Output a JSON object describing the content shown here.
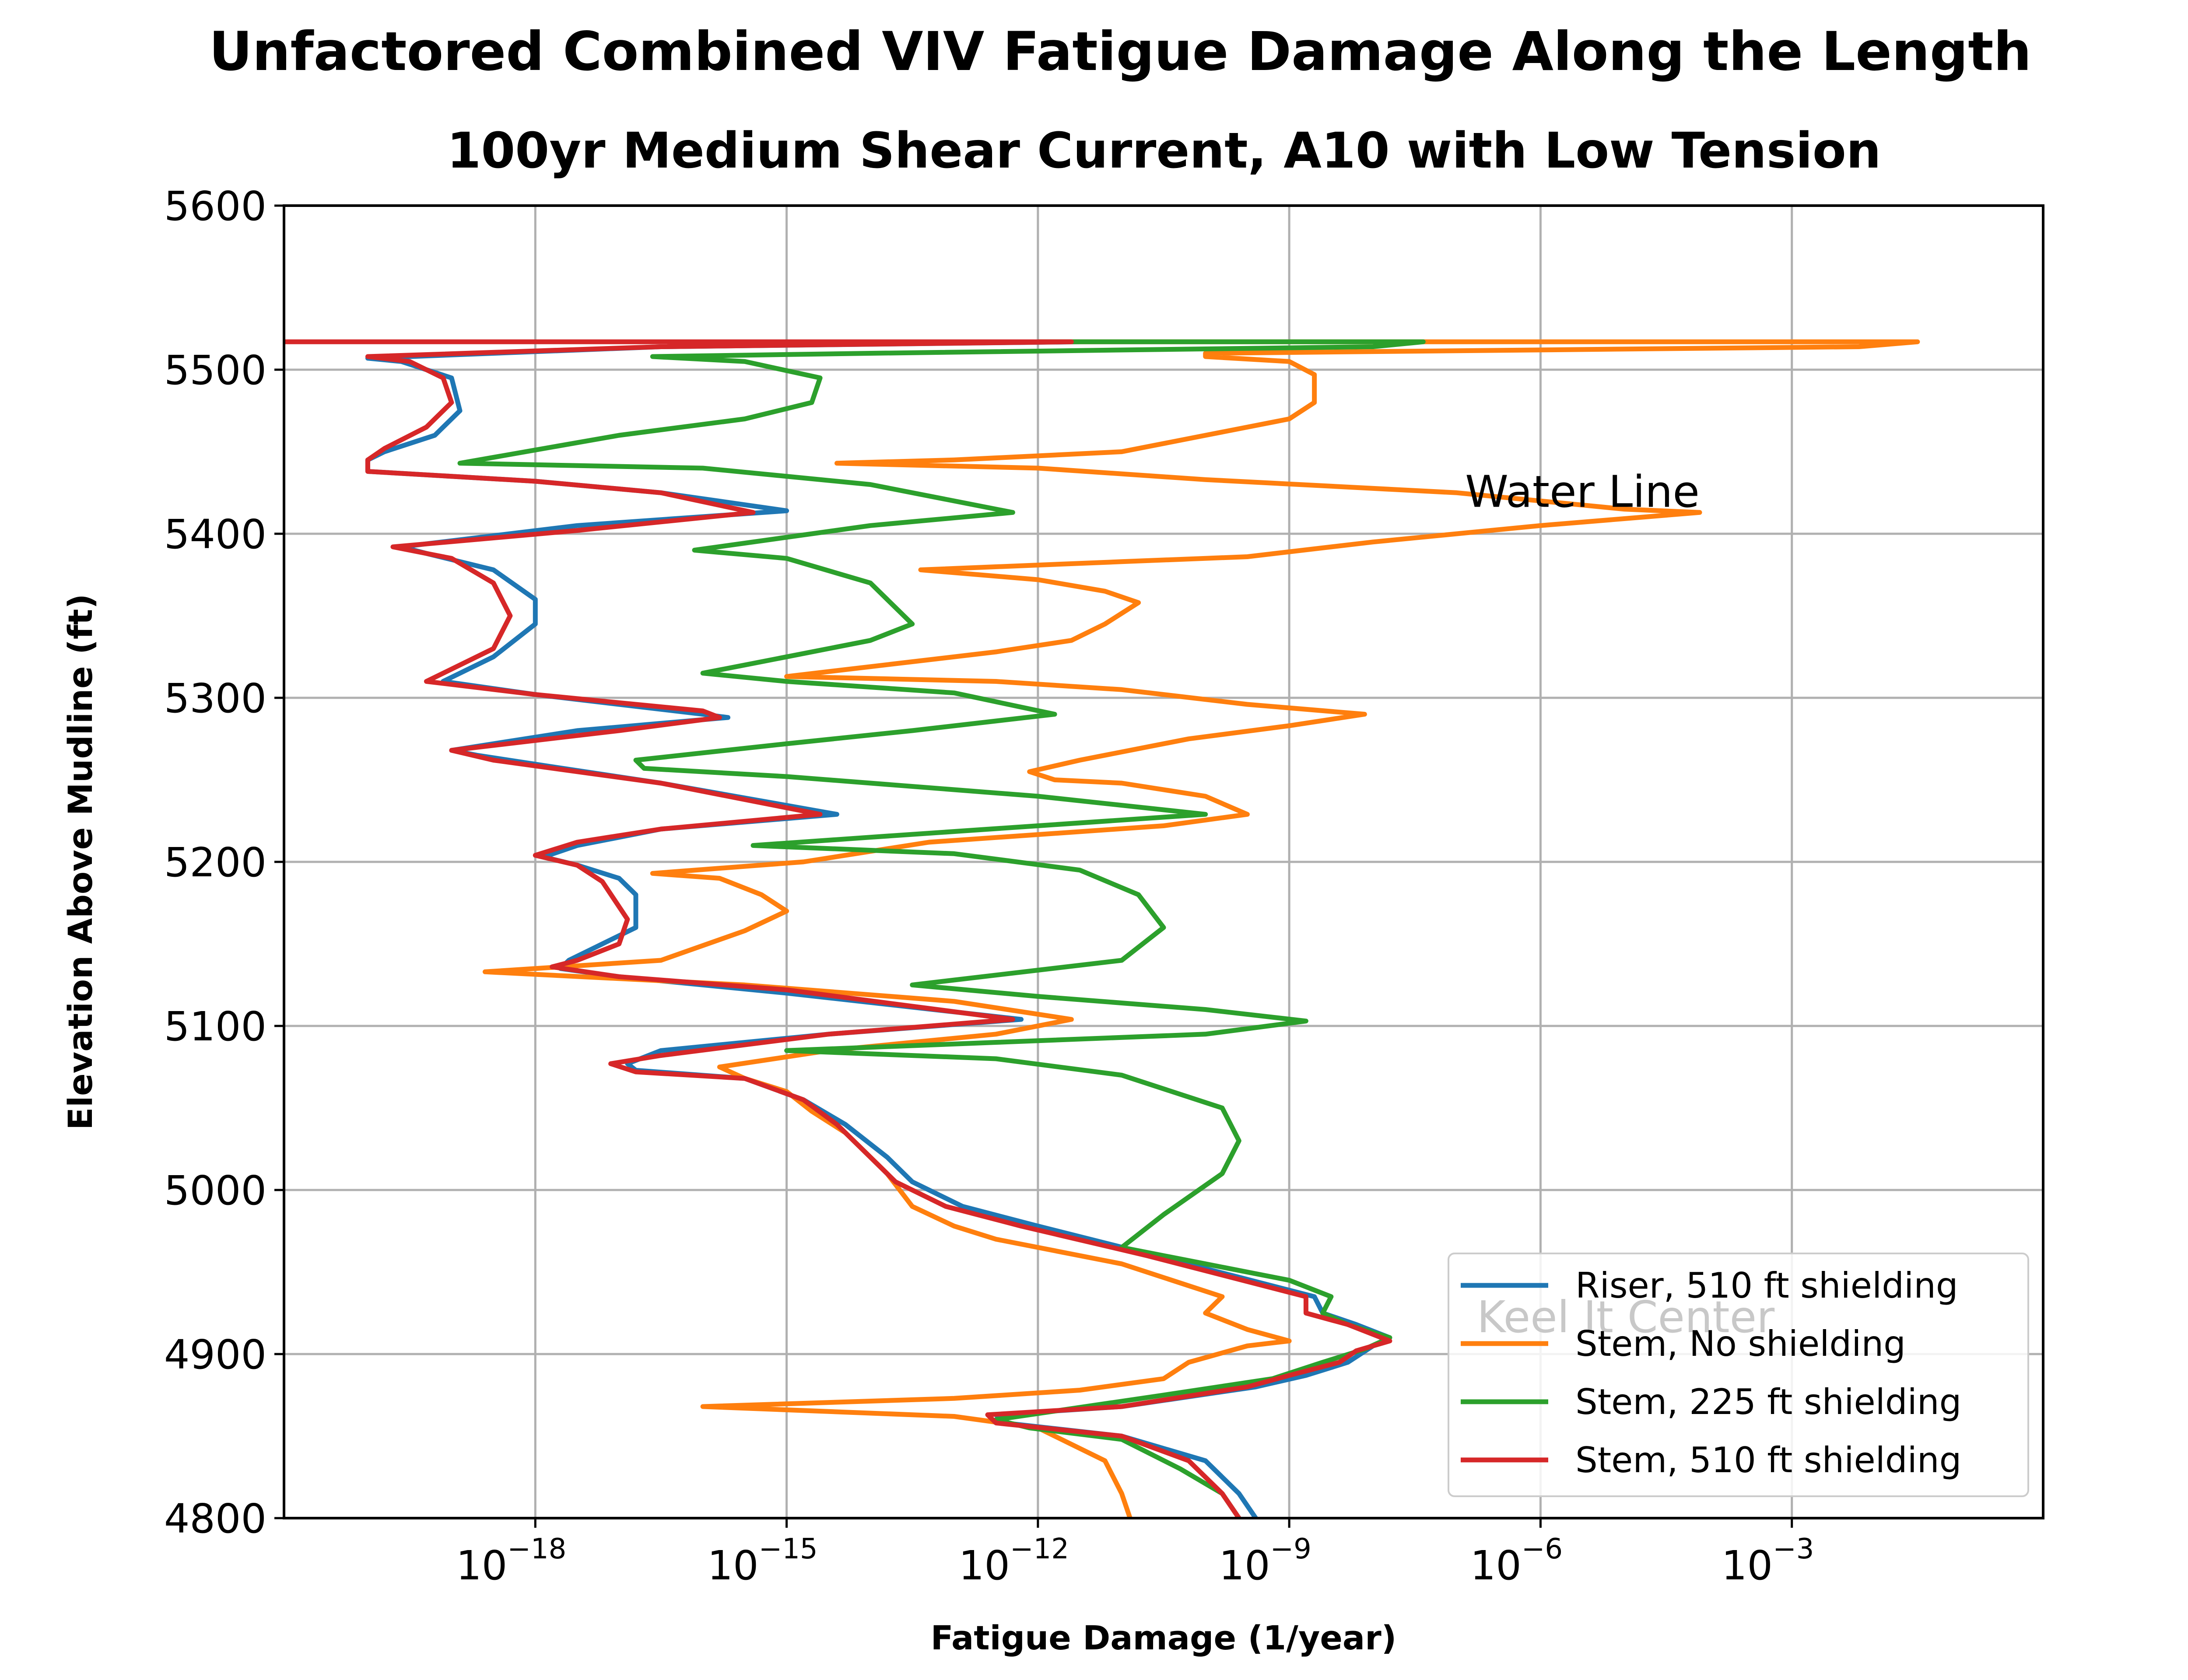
{
  "chart_data": {
    "type": "line",
    "title": "Unfactored Combined VIV Fatigue Damage Along the Length",
    "subtitle": "100yr Medium Shear Current, A10 with Low Tension",
    "xlabel": "Fatigue Damage (1/year)",
    "ylabel": "Elevation Above Mudline (ft)",
    "xscale": "log",
    "xlim_exp": [
      -21,
      0
    ],
    "ylim": [
      4800,
      5600
    ],
    "x_tick_exps": [
      -18,
      -15,
      -12,
      -9,
      -6,
      -3
    ],
    "x_tick_labels": [
      "10",
      "10",
      "10",
      "10",
      "10",
      "10"
    ],
    "x_tick_label_exps": [
      "−18",
      "−15",
      "−12",
      "−9",
      "−6",
      "−3"
    ],
    "y_ticks": [
      4800,
      4900,
      5000,
      5100,
      5200,
      5300,
      5400,
      5500,
      5600
    ],
    "y_tick_labels": [
      "4800",
      "4900",
      "5000",
      "5100",
      "5200",
      "5300",
      "5400",
      "5500",
      "5600"
    ],
    "grid": true,
    "legend_position": "lower-right",
    "annotations": [
      {
        "text": "Water Line",
        "x_exp": -6.9,
        "y": 5425
      }
    ],
    "watermark": "Keel It  Center",
    "series": [
      {
        "name": "Riser, 510 ft shielding",
        "color": "#1f77b4",
        "points_exp_y": [
          [
            -11.5,
            5517
          ],
          [
            -16.5,
            5514
          ],
          [
            -20.0,
            5507
          ],
          [
            -19.6,
            5505
          ],
          [
            -19.0,
            5495
          ],
          [
            -18.9,
            5475
          ],
          [
            -19.2,
            5460
          ],
          [
            -19.8,
            5450
          ],
          [
            -20.0,
            5445
          ],
          [
            -20.0,
            5438
          ],
          [
            -18.0,
            5432
          ],
          [
            -16.5,
            5425
          ],
          [
            -15.0,
            5414
          ],
          [
            -17.5,
            5405
          ],
          [
            -19.6,
            5392
          ],
          [
            -19.3,
            5388
          ],
          [
            -18.5,
            5378
          ],
          [
            -18.0,
            5360
          ],
          [
            -18.0,
            5345
          ],
          [
            -18.5,
            5325
          ],
          [
            -19.1,
            5310
          ],
          [
            -18.0,
            5302
          ],
          [
            -16.0,
            5290
          ],
          [
            -15.7,
            5288
          ],
          [
            -17.5,
            5280
          ],
          [
            -19.0,
            5268
          ],
          [
            -18.7,
            5265
          ],
          [
            -17.8,
            5258
          ],
          [
            -16.5,
            5248
          ],
          [
            -14.4,
            5229
          ],
          [
            -16.5,
            5220
          ],
          [
            -17.5,
            5210
          ],
          [
            -17.9,
            5203
          ],
          [
            -17.5,
            5198
          ],
          [
            -17.0,
            5190
          ],
          [
            -16.8,
            5180
          ],
          [
            -16.8,
            5160
          ],
          [
            -17.2,
            5150
          ],
          [
            -17.6,
            5140
          ],
          [
            -17.7,
            5135
          ],
          [
            -17.0,
            5130
          ],
          [
            -15.0,
            5120
          ],
          [
            -12.2,
            5104
          ],
          [
            -14.5,
            5095
          ],
          [
            -16.5,
            5085
          ],
          [
            -16.9,
            5077
          ],
          [
            -16.8,
            5073
          ],
          [
            -15.5,
            5068
          ],
          [
            -14.8,
            5055
          ],
          [
            -14.3,
            5040
          ],
          [
            -13.8,
            5020
          ],
          [
            -13.5,
            5005
          ],
          [
            -12.9,
            4990
          ],
          [
            -12.0,
            4978
          ],
          [
            -10.6,
            4960
          ],
          [
            -8.7,
            4935
          ],
          [
            -8.6,
            4925
          ],
          [
            -8.2,
            4918
          ],
          [
            -7.8,
            4910
          ],
          [
            -8.0,
            4905
          ],
          [
            -8.3,
            4895
          ],
          [
            -8.8,
            4887
          ],
          [
            -9.4,
            4880
          ],
          [
            -11.0,
            4868
          ],
          [
            -12.5,
            4863
          ],
          [
            -12.4,
            4858
          ],
          [
            -11.0,
            4850
          ],
          [
            -10.0,
            4835
          ],
          [
            -9.6,
            4815
          ],
          [
            -9.4,
            4800
          ]
        ]
      },
      {
        "name": "Stem, No shielding",
        "color": "#ff7f0e",
        "points_exp_y": [
          [
            -12.0,
            5517
          ],
          [
            -1.5,
            5517
          ],
          [
            -2.2,
            5514
          ],
          [
            -10.0,
            5510
          ],
          [
            -10.0,
            5508
          ],
          [
            -9.0,
            5505
          ],
          [
            -8.7,
            5497
          ],
          [
            -8.7,
            5480
          ],
          [
            -9.0,
            5470
          ],
          [
            -10.0,
            5460
          ],
          [
            -11.0,
            5450
          ],
          [
            -13.0,
            5445
          ],
          [
            -14.4,
            5443
          ],
          [
            -12.0,
            5440
          ],
          [
            -10.0,
            5433
          ],
          [
            -7.0,
            5425
          ],
          [
            -5.0,
            5415
          ],
          [
            -4.1,
            5413
          ],
          [
            -6.0,
            5405
          ],
          [
            -8.0,
            5395
          ],
          [
            -9.5,
            5386
          ],
          [
            -11.0,
            5383
          ],
          [
            -13.4,
            5378
          ],
          [
            -12.0,
            5372
          ],
          [
            -11.2,
            5365
          ],
          [
            -10.8,
            5358
          ],
          [
            -11.2,
            5345
          ],
          [
            -11.6,
            5335
          ],
          [
            -12.5,
            5328
          ],
          [
            -15.0,
            5313
          ],
          [
            -12.5,
            5310
          ],
          [
            -11.0,
            5305
          ],
          [
            -9.5,
            5296
          ],
          [
            -8.1,
            5290
          ],
          [
            -9.0,
            5283
          ],
          [
            -10.2,
            5275
          ],
          [
            -11.5,
            5262
          ],
          [
            -12.1,
            5255
          ],
          [
            -11.8,
            5250
          ],
          [
            -11.0,
            5248
          ],
          [
            -10.0,
            5240
          ],
          [
            -9.5,
            5229
          ],
          [
            -10.5,
            5222
          ],
          [
            -13.3,
            5212
          ],
          [
            -14.8,
            5200
          ],
          [
            -16.6,
            5193
          ],
          [
            -15.8,
            5190
          ],
          [
            -15.3,
            5180
          ],
          [
            -15.0,
            5170
          ],
          [
            -15.5,
            5158
          ],
          [
            -16.5,
            5140
          ],
          [
            -18.6,
            5133
          ],
          [
            -15.5,
            5125
          ],
          [
            -13.0,
            5115
          ],
          [
            -11.6,
            5104
          ],
          [
            -12.5,
            5095
          ],
          [
            -14.5,
            5085
          ],
          [
            -15.8,
            5075
          ],
          [
            -15.5,
            5068
          ],
          [
            -15.0,
            5060
          ],
          [
            -14.7,
            5048
          ],
          [
            -14.3,
            5035
          ],
          [
            -13.8,
            5010
          ],
          [
            -13.5,
            4990
          ],
          [
            -13.0,
            4978
          ],
          [
            -12.5,
            4970
          ],
          [
            -11.0,
            4955
          ],
          [
            -9.8,
            4935
          ],
          [
            -10.0,
            4925
          ],
          [
            -9.5,
            4915
          ],
          [
            -9.0,
            4908
          ],
          [
            -9.5,
            4905
          ],
          [
            -10.2,
            4895
          ],
          [
            -10.5,
            4885
          ],
          [
            -11.5,
            4878
          ],
          [
            -13.0,
            4873
          ],
          [
            -16.0,
            4868
          ],
          [
            -13.0,
            4862
          ],
          [
            -12.0,
            4855
          ],
          [
            -11.2,
            4835
          ],
          [
            -11.0,
            4815
          ],
          [
            -10.9,
            4800
          ]
        ]
      },
      {
        "name": "Stem, 225 ft shielding",
        "color": "#2ca02c",
        "points_exp_y": [
          [
            -12.0,
            5517
          ],
          [
            -7.4,
            5517
          ],
          [
            -8.0,
            5514
          ],
          [
            -14.0,
            5510
          ],
          [
            -16.6,
            5508
          ],
          [
            -15.5,
            5505
          ],
          [
            -14.6,
            5495
          ],
          [
            -14.7,
            5480
          ],
          [
            -15.5,
            5470
          ],
          [
            -17.0,
            5460
          ],
          [
            -18.9,
            5443
          ],
          [
            -16.0,
            5440
          ],
          [
            -14.0,
            5430
          ],
          [
            -12.3,
            5413
          ],
          [
            -14.0,
            5405
          ],
          [
            -16.1,
            5390
          ],
          [
            -15.0,
            5385
          ],
          [
            -14.0,
            5370
          ],
          [
            -13.5,
            5345
          ],
          [
            -14.0,
            5335
          ],
          [
            -15.0,
            5325
          ],
          [
            -16.0,
            5315
          ],
          [
            -15.0,
            5310
          ],
          [
            -13.0,
            5303
          ],
          [
            -11.8,
            5290
          ],
          [
            -13.5,
            5280
          ],
          [
            -15.0,
            5272
          ],
          [
            -16.8,
            5262
          ],
          [
            -16.7,
            5257
          ],
          [
            -15.0,
            5252
          ],
          [
            -12.0,
            5240
          ],
          [
            -10.0,
            5229
          ],
          [
            -12.0,
            5222
          ],
          [
            -14.0,
            5215
          ],
          [
            -15.4,
            5210
          ],
          [
            -13.0,
            5205
          ],
          [
            -11.5,
            5195
          ],
          [
            -10.8,
            5180
          ],
          [
            -10.5,
            5160
          ],
          [
            -11.0,
            5140
          ],
          [
            -13.5,
            5125
          ],
          [
            -12.0,
            5118
          ],
          [
            -10.0,
            5110
          ],
          [
            -8.8,
            5103
          ],
          [
            -10.0,
            5095
          ],
          [
            -12.5,
            5090
          ],
          [
            -15.0,
            5085
          ],
          [
            -12.5,
            5080
          ],
          [
            -11.0,
            5070
          ],
          [
            -9.8,
            5050
          ],
          [
            -9.6,
            5030
          ],
          [
            -9.8,
            5010
          ],
          [
            -10.5,
            4985
          ],
          [
            -11.0,
            4965
          ],
          [
            -10.0,
            4955
          ],
          [
            -9.0,
            4945
          ],
          [
            -8.5,
            4935
          ],
          [
            -8.6,
            4925
          ],
          [
            -8.3,
            4918
          ],
          [
            -7.8,
            4910
          ],
          [
            -8.1,
            4903
          ],
          [
            -8.6,
            4895
          ],
          [
            -9.2,
            4885
          ],
          [
            -10.5,
            4875
          ],
          [
            -12.5,
            4860
          ],
          [
            -12.1,
            4855
          ],
          [
            -11.0,
            4848
          ],
          [
            -10.3,
            4830
          ],
          [
            -9.8,
            4815
          ],
          [
            -9.6,
            4800
          ]
        ]
      },
      {
        "name": "Stem, 510 ft shielding",
        "color": "#d62728",
        "points_exp_y": [
          [
            -21.0,
            5517
          ],
          [
            -11.6,
            5517
          ],
          [
            -16.5,
            5514
          ],
          [
            -20.0,
            5508
          ],
          [
            -19.5,
            5505
          ],
          [
            -19.1,
            5495
          ],
          [
            -19.0,
            5480
          ],
          [
            -19.3,
            5465
          ],
          [
            -19.8,
            5452
          ],
          [
            -20.0,
            5445
          ],
          [
            -20.0,
            5438
          ],
          [
            -18.0,
            5432
          ],
          [
            -16.5,
            5425
          ],
          [
            -15.4,
            5413
          ],
          [
            -17.5,
            5402
          ],
          [
            -19.7,
            5392
          ],
          [
            -19.0,
            5385
          ],
          [
            -18.5,
            5370
          ],
          [
            -18.3,
            5350
          ],
          [
            -18.5,
            5330
          ],
          [
            -19.3,
            5310
          ],
          [
            -18.0,
            5302
          ],
          [
            -16.0,
            5292
          ],
          [
            -15.8,
            5288
          ],
          [
            -17.0,
            5280
          ],
          [
            -19.0,
            5268
          ],
          [
            -18.5,
            5262
          ],
          [
            -17.5,
            5255
          ],
          [
            -16.5,
            5248
          ],
          [
            -14.6,
            5229
          ],
          [
            -16.5,
            5220
          ],
          [
            -17.5,
            5212
          ],
          [
            -18.0,
            5204
          ],
          [
            -17.5,
            5198
          ],
          [
            -17.2,
            5188
          ],
          [
            -16.9,
            5165
          ],
          [
            -17.0,
            5150
          ],
          [
            -17.5,
            5140
          ],
          [
            -17.8,
            5136
          ],
          [
            -17.0,
            5130
          ],
          [
            -15.0,
            5122
          ],
          [
            -12.3,
            5104
          ],
          [
            -14.5,
            5095
          ],
          [
            -16.5,
            5082
          ],
          [
            -17.1,
            5077
          ],
          [
            -16.8,
            5072
          ],
          [
            -15.5,
            5068
          ],
          [
            -14.8,
            5055
          ],
          [
            -14.4,
            5040
          ],
          [
            -14.0,
            5020
          ],
          [
            -13.7,
            5005
          ],
          [
            -13.1,
            4990
          ],
          [
            -12.2,
            4978
          ],
          [
            -10.7,
            4960
          ],
          [
            -8.8,
            4935
          ],
          [
            -8.8,
            4925
          ],
          [
            -8.3,
            4918
          ],
          [
            -7.8,
            4908
          ],
          [
            -8.2,
            4902
          ],
          [
            -8.4,
            4895
          ],
          [
            -9.0,
            4887
          ],
          [
            -9.5,
            4880
          ],
          [
            -11.0,
            4868
          ],
          [
            -12.6,
            4863
          ],
          [
            -12.5,
            4858
          ],
          [
            -11.0,
            4850
          ],
          [
            -10.2,
            4835
          ],
          [
            -9.8,
            4815
          ],
          [
            -9.6,
            4800
          ]
        ]
      }
    ]
  }
}
